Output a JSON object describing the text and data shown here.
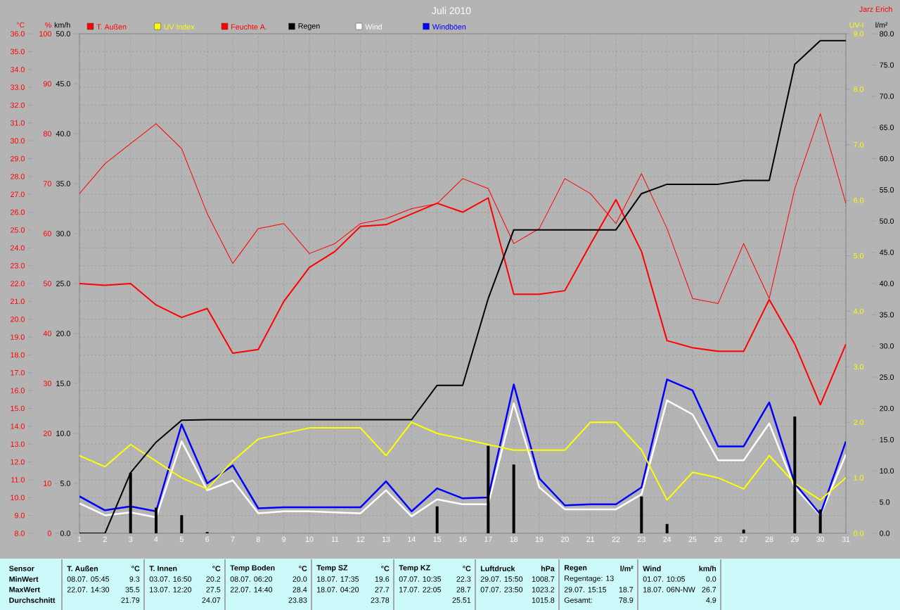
{
  "chart_data": [
    {
      "type": "line",
      "title": "Juli 2010",
      "x": [
        1,
        2,
        3,
        4,
        5,
        6,
        7,
        8,
        9,
        10,
        11,
        12,
        13,
        14,
        15,
        16,
        17,
        18,
        19,
        20,
        21,
        22,
        23,
        24,
        25,
        26,
        27,
        28,
        29,
        30,
        31
      ],
      "xlim": [
        1,
        31
      ],
      "xticks": [
        1,
        2,
        3,
        4,
        5,
        6,
        7,
        8,
        9,
        10,
        11,
        12,
        13,
        14,
        15,
        16,
        17,
        18,
        19,
        20,
        21,
        22,
        23,
        24,
        25,
        26,
        27,
        28,
        29,
        30,
        31
      ],
      "ylabel": "°C",
      "y2label": "%",
      "y3label": "km/h",
      "ylim": [
        8,
        36
      ],
      "yticks": [
        {
          "value": 8,
          "label": "8.0"
        },
        {
          "value": 9,
          "label": "9.0"
        },
        {
          "value": 10,
          "label": "10.0"
        },
        {
          "value": 11,
          "label": "11.0"
        },
        {
          "value": 12,
          "label": "12.0"
        },
        {
          "value": 13,
          "label": "13.0"
        },
        {
          "value": 14,
          "label": "14.0"
        },
        {
          "value": 15,
          "label": "15.0"
        },
        {
          "value": 16,
          "label": "16.0"
        },
        {
          "value": 17,
          "label": "17.0"
        },
        {
          "value": 18,
          "label": "18.0"
        },
        {
          "value": 19,
          "label": "19.0"
        },
        {
          "value": 20,
          "label": "20.0"
        },
        {
          "value": 21,
          "label": "21.0"
        },
        {
          "value": 22,
          "label": "22.0"
        },
        {
          "value": 23,
          "label": "23.0"
        },
        {
          "value": 24,
          "label": "24.0"
        },
        {
          "value": 25,
          "label": "25.0"
        },
        {
          "value": 26,
          "label": "26.0"
        },
        {
          "value": 27,
          "label": "27.0"
        },
        {
          "value": 28,
          "label": "28.0"
        },
        {
          "value": 29,
          "label": "29.0"
        },
        {
          "value": 30,
          "label": "30.0"
        },
        {
          "value": 31,
          "label": "31.0"
        },
        {
          "value": 32,
          "label": "32.0"
        },
        {
          "value": 33,
          "label": "33.0"
        },
        {
          "value": 34,
          "label": "34.0"
        },
        {
          "value": 35,
          "label": "35.0"
        },
        {
          "value": 36,
          "label": "36.0"
        }
      ],
      "y2lim": [
        0,
        100
      ],
      "y2ticks": [
        0,
        10,
        20,
        30,
        40,
        50,
        60,
        70,
        80,
        90,
        100
      ],
      "y3lim": [
        0,
        50
      ],
      "y3ticks": [
        {
          "value": 0,
          "label": "0.0"
        },
        {
          "value": 5,
          "label": "5.0"
        },
        {
          "value": 10,
          "label": "10.0"
        },
        {
          "value": 15,
          "label": "15.0"
        },
        {
          "value": 20,
          "label": "20.0"
        },
        {
          "value": 25,
          "label": "25.0"
        },
        {
          "value": 30,
          "label": "30.0"
        },
        {
          "value": 35,
          "label": "35.0"
        },
        {
          "value": 40,
          "label": "40.0"
        },
        {
          "value": 45,
          "label": "45.0"
        },
        {
          "value": 50,
          "label": "50.0"
        }
      ],
      "series": [
        {
          "name": "T. Außen",
          "color": "#ff0000",
          "values": [
            22.0,
            21.9,
            22.0,
            20.8,
            20.1,
            20.6,
            18.1,
            18.3,
            21.0,
            22.9,
            23.8,
            25.2,
            25.3,
            25.9,
            26.5,
            26.0,
            26.8,
            21.4,
            21.4,
            21.6,
            24.2,
            26.7,
            23.8,
            18.8,
            18.4,
            18.2,
            18.2,
            21.1,
            18.6,
            15.2,
            18.6
          ]
        },
        {
          "name": "Feuchte A.",
          "color": "#ff0000",
          "axis": "y2",
          "values": [
            68,
            74,
            78,
            82,
            77,
            64,
            54,
            61,
            62,
            56,
            58,
            62,
            63,
            65,
            66,
            71,
            69,
            58,
            61,
            71,
            68,
            62,
            72,
            61,
            47,
            46,
            58,
            47,
            69,
            84,
            66
          ]
        },
        {
          "name": "Wind",
          "color": "#ffffff",
          "axis": "y3",
          "values": [
            3.0,
            1.8,
            2.1,
            1.6,
            9.2,
            4.3,
            5.3,
            2.0,
            2.2,
            2.2,
            2.1,
            2.0,
            4.3,
            1.7,
            3.4,
            2.9,
            2.9,
            13.0,
            4.6,
            2.4,
            2.4,
            2.4,
            3.9,
            13.3,
            11.9,
            7.3,
            7.3,
            11.0,
            4.6,
            1.8,
            7.9
          ]
        },
        {
          "name": "Windböen",
          "color": "#0000ff",
          "axis": "y3",
          "values": [
            3.7,
            2.3,
            2.7,
            2.2,
            10.9,
            5.0,
            6.8,
            2.5,
            2.6,
            2.6,
            2.6,
            2.6,
            5.2,
            2.2,
            4.5,
            3.5,
            3.6,
            14.9,
            5.5,
            2.8,
            2.9,
            2.9,
            4.6,
            15.4,
            14.3,
            8.7,
            8.7,
            13.1,
            5.0,
            1.9,
            9.2
          ]
        }
      ],
      "grid": true,
      "legend": "top",
      "annotations": [
        "Jarz Erich",
        "Sensor",
        "MinWert",
        "MaxWert",
        "Durchschnitt",
        "T. Außen",
        "°C",
        "08.07. 05:45",
        "9.3",
        "22.07. 14:30",
        "35.5",
        null,
        "21.79",
        "T. Innen",
        "°C",
        "03.07. 16:50",
        "20.2",
        "13.07. 12:20",
        "27.5",
        null,
        "24.07",
        "Temp Boden",
        "°C",
        "08.07. 06:20",
        "20.0",
        "22.07. 14:40",
        "28.4",
        null,
        "23.83",
        "Temp SZ",
        "°C",
        "18.07. 17:35",
        "19.6",
        "18.07. 04:20",
        "27.7",
        null,
        "23.78",
        "Temp KZ",
        "°C",
        "07.07. 10:35",
        "22.3",
        "17.07. 22:05",
        "28.7",
        null,
        "25.51",
        "Luftdruck",
        "hPa",
        "29.07. 15:50",
        "1008.7",
        "07.07. 23:50",
        "1023.2",
        null,
        "1015.8",
        "Regen",
        "l/m²",
        "Regentage: 13",
        null,
        "29.07. 15:15",
        "18.7",
        "Gesamt:",
        "78.9",
        "Wind",
        "km/h",
        "01.07. 10:05",
        "0.0",
        "18.07. 06N-NW",
        "26.7",
        null,
        "4.9"
      ]
    },
    {
      "type": "line",
      "x": [
        1,
        2,
        3,
        4,
        5,
        6,
        7,
        8,
        9,
        10,
        11,
        12,
        13,
        14,
        15,
        16,
        17,
        18,
        19,
        20,
        21,
        22,
        23,
        24,
        25,
        26,
        27,
        28,
        29,
        30,
        31
      ],
      "xlim": [
        1,
        31
      ],
      "tick_labels": "y",
      "ylabel": "l/m²",
      "y2label": "UV-I",
      "ylim": [
        0,
        80
      ],
      "yticks": [
        {
          "value": 0,
          "label": "0.0"
        },
        {
          "value": 5,
          "label": "5.0"
        },
        {
          "value": 10,
          "label": "10.0"
        },
        {
          "value": 15,
          "label": "15.0"
        },
        {
          "value": 20,
          "label": "20.0"
        },
        {
          "value": 25,
          "label": "25.0"
        },
        {
          "value": 30,
          "label": "30.0"
        },
        {
          "value": 35,
          "label": "35.0"
        },
        {
          "value": 40,
          "label": "40.0"
        },
        {
          "value": 45,
          "label": "45.0"
        },
        {
          "value": 50,
          "label": "50.0"
        },
        {
          "value": 55,
          "label": "55.0"
        },
        {
          "value": 60,
          "label": "60.0"
        },
        {
          "value": 65,
          "label": "65.0"
        },
        {
          "value": 70,
          "label": "70.0"
        },
        {
          "value": 75,
          "label": "75.0"
        },
        {
          "value": 80,
          "label": "80.0"
        }
      ],
      "y2lim": [
        0,
        9
      ],
      "y2ticks": [
        {
          "value": 0,
          "label": "0.0"
        },
        {
          "value": 1,
          "label": "1.0"
        },
        {
          "value": 2,
          "label": "2.0"
        },
        {
          "value": 3,
          "label": "3.0"
        },
        {
          "value": 4,
          "label": "4.0"
        },
        {
          "value": 5,
          "label": "5.0"
        },
        {
          "value": 6,
          "label": "6.0"
        },
        {
          "value": 7,
          "label": "7.0"
        },
        {
          "value": 8,
          "label": "8.0"
        },
        {
          "value": 9,
          "label": "9.0"
        }
      ],
      "series": [
        {
          "name": "UV Index",
          "color": "#ffff00",
          "axis": "y2",
          "values": [
            1.4,
            1.2,
            1.6,
            1.3,
            1.0,
            0.8,
            1.3,
            1.7,
            1.8,
            1.9,
            1.9,
            1.9,
            1.4,
            2.0,
            1.8,
            1.7,
            1.6,
            1.5,
            1.5,
            1.5,
            2.0,
            2.0,
            1.5,
            0.6,
            1.1,
            1.0,
            0.8,
            1.4,
            0.9,
            0.6,
            1.0
          ]
        },
        {
          "name": "Regen",
          "color": "#000000",
          "values": [
            0,
            0,
            9.7,
            14.6,
            18.1,
            18.2,
            18.2,
            18.2,
            18.2,
            18.2,
            18.2,
            18.2,
            18.2,
            18.2,
            23.7,
            23.7,
            37.6,
            48.6,
            48.6,
            48.6,
            48.6,
            48.6,
            54.4,
            55.9,
            55.9,
            55.9,
            56.5,
            56.5,
            75.1,
            78.9,
            78.9
          ]
        },
        {
          "type": "bar",
          "color": "#000000",
          "values": [
            0,
            0,
            9.7,
            4.1,
            2.9,
            0.2,
            0,
            0,
            0,
            0,
            0,
            0,
            0,
            0,
            4.3,
            0,
            14.0,
            11.0,
            0,
            0,
            0,
            0,
            5.9,
            1.5,
            0,
            0,
            0.6,
            0,
            18.7,
            3.8,
            0
          ]
        }
      ],
      "legend": "top"
    }
  ]
}
